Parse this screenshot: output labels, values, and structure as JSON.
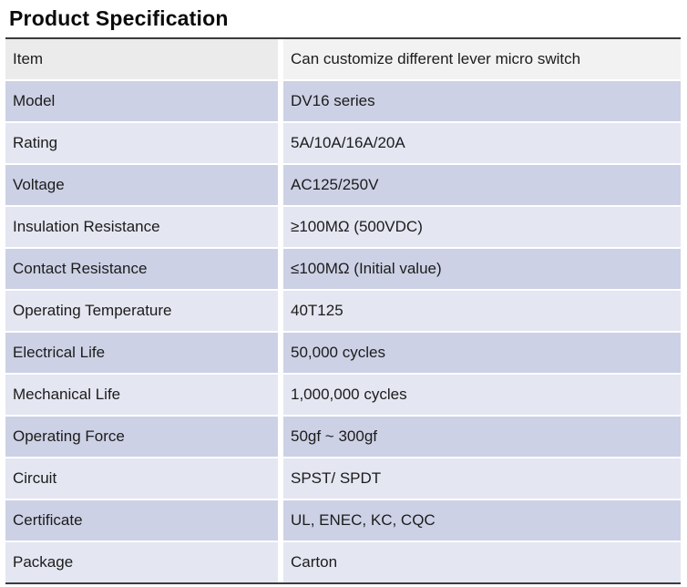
{
  "page": {
    "title": "Product Specification"
  },
  "colors": {
    "row_gray_left": "#ebebeb",
    "row_gray_right": "#f2f2f2",
    "row_dark": "#cdd1e5",
    "row_light": "#e4e6f1",
    "border": "#3b3b3b",
    "text": "#1c1c1c"
  },
  "table": {
    "rows": [
      {
        "label": "Item",
        "value": "Can customize different lever micro switch"
      },
      {
        "label": "Model",
        "value": "DV16 series"
      },
      {
        "label": "Rating",
        "value": "5A/10A/16A/20A"
      },
      {
        "label": "Voltage",
        "value": "AC125/250V"
      },
      {
        "label": "Insulation Resistance",
        "value": "≥100MΩ (500VDC)"
      },
      {
        "label": "Contact Resistance",
        "value": "≤100MΩ (Initial value)"
      },
      {
        "label": "Operating Temperature",
        "value": "40T125"
      },
      {
        "label": "Electrical Life",
        "value": "50,000 cycles"
      },
      {
        "label": "Mechanical Life",
        "value": "1,000,000 cycles"
      },
      {
        "label": "Operating Force",
        "value": "50gf ~ 300gf"
      },
      {
        "label": "Circuit",
        "value": "SPST/ SPDT"
      },
      {
        "label": "Certificate",
        "value": "UL, ENEC, KC, CQC"
      },
      {
        "label": "Package",
        "value": "Carton"
      }
    ]
  }
}
